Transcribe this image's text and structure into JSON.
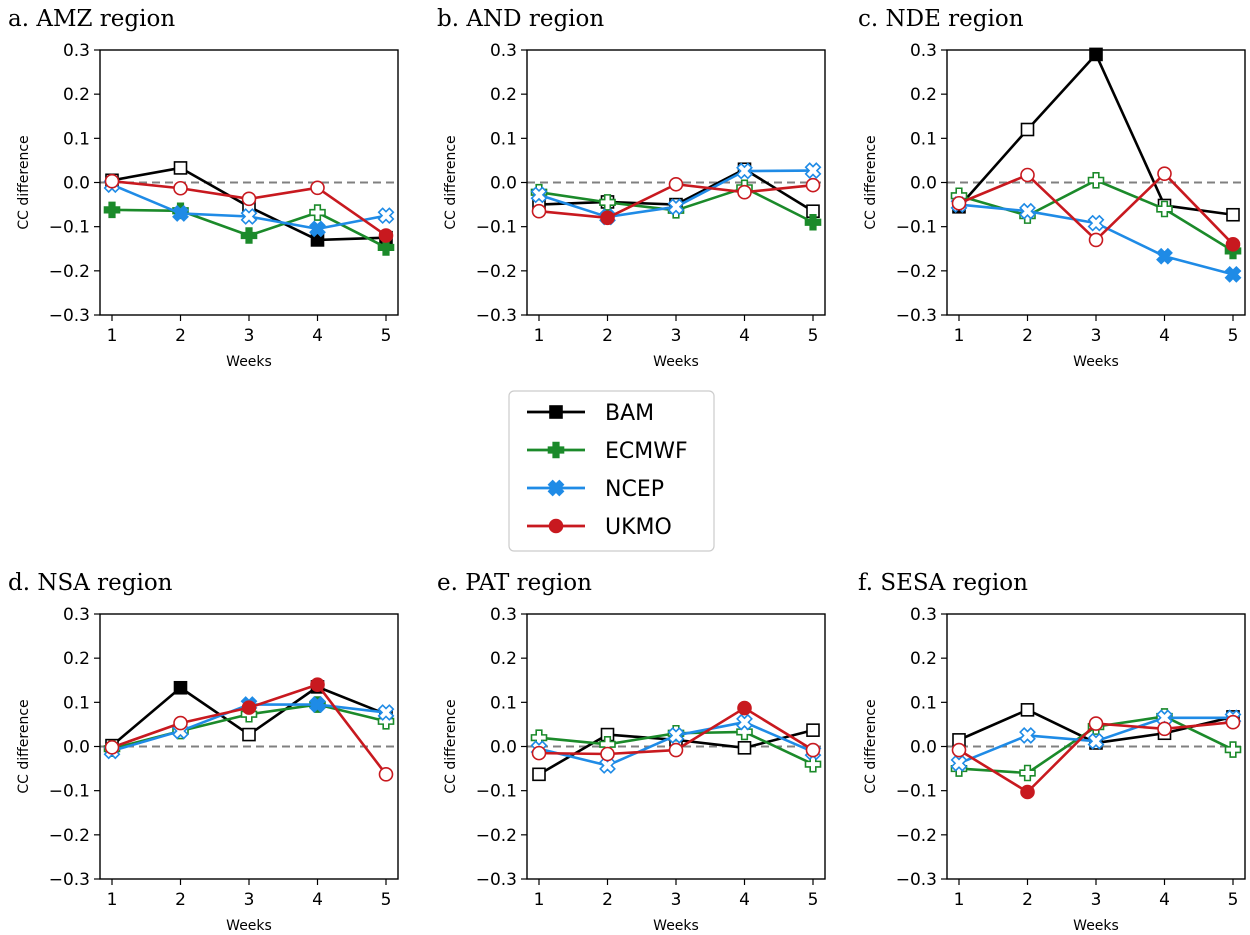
{
  "colors": {
    "BAM": "#000000",
    "ECMWF": "#1b8a2a",
    "NCEP": "#1f8be6",
    "UKMO": "#c8191f",
    "zero_line": "#808080"
  },
  "markers": {
    "BAM": "square",
    "ECMWF": "plus",
    "NCEP": "x",
    "UKMO": "circle"
  },
  "legend": {
    "entries": [
      "BAM",
      "ECMWF",
      "NCEP",
      "UKMO"
    ],
    "placement": "center"
  },
  "chart_data": [
    {
      "type": "line",
      "title": "a. AMZ region",
      "xlabel": "Weeks",
      "ylabel": "CC difference",
      "x": [
        1,
        2,
        3,
        4,
        5
      ],
      "xticks": [
        "1",
        "2",
        "3",
        "4",
        "5"
      ],
      "ylim": [
        -0.3,
        0.3
      ],
      "yticks": [
        "0.3",
        "0.2",
        "0.1",
        "0.0",
        "−0.1",
        "−0.2",
        "−0.3"
      ],
      "zero_line": true,
      "series": [
        {
          "name": "BAM",
          "values": [
            0.005,
            0.033,
            -0.055,
            -0.13,
            -0.125
          ],
          "filled": [
            false,
            false,
            false,
            true,
            true
          ]
        },
        {
          "name": "ECMWF",
          "values": [
            -0.062,
            -0.064,
            -0.12,
            -0.068,
            -0.147
          ],
          "filled": [
            true,
            true,
            true,
            false,
            true
          ]
        },
        {
          "name": "NCEP",
          "values": [
            -0.005,
            -0.07,
            -0.077,
            -0.105,
            -0.075
          ],
          "filled": [
            false,
            true,
            false,
            true,
            false
          ]
        },
        {
          "name": "UKMO",
          "values": [
            0.003,
            -0.013,
            -0.037,
            -0.012,
            -0.12
          ],
          "filled": [
            false,
            false,
            false,
            false,
            true
          ]
        }
      ]
    },
    {
      "type": "line",
      "title": "b. AND region",
      "xlabel": "Weeks",
      "ylabel": "CC difference",
      "x": [
        1,
        2,
        3,
        4,
        5
      ],
      "xticks": [
        "1",
        "2",
        "3",
        "4",
        "5"
      ],
      "ylim": [
        -0.3,
        0.3
      ],
      "yticks": [
        "0.3",
        "0.2",
        "0.1",
        "0.0",
        "−0.1",
        "−0.2",
        "−0.3"
      ],
      "zero_line": true,
      "series": [
        {
          "name": "BAM",
          "values": [
            -0.05,
            -0.044,
            -0.05,
            0.03,
            -0.065
          ],
          "filled": [
            false,
            false,
            false,
            false,
            false
          ]
        },
        {
          "name": "ECMWF",
          "values": [
            -0.022,
            -0.045,
            -0.063,
            -0.012,
            -0.09
          ],
          "filled": [
            false,
            false,
            false,
            false,
            true
          ]
        },
        {
          "name": "NCEP",
          "values": [
            -0.028,
            -0.078,
            -0.055,
            0.026,
            0.027
          ],
          "filled": [
            false,
            true,
            false,
            false,
            false
          ]
        },
        {
          "name": "UKMO",
          "values": [
            -0.065,
            -0.08,
            -0.004,
            -0.022,
            -0.006
          ],
          "filled": [
            false,
            true,
            false,
            false,
            false
          ]
        }
      ]
    },
    {
      "type": "line",
      "title": "c. NDE region",
      "xlabel": "Weeks",
      "ylabel": "CC difference",
      "x": [
        1,
        2,
        3,
        4,
        5
      ],
      "xticks": [
        "1",
        "2",
        "3",
        "4",
        "5"
      ],
      "ylim": [
        -0.3,
        0.3
      ],
      "yticks": [
        "0.3",
        "0.2",
        "0.1",
        "0.0",
        "−0.1",
        "−0.2",
        "−0.3"
      ],
      "zero_line": true,
      "series": [
        {
          "name": "BAM",
          "values": [
            -0.055,
            0.12,
            0.29,
            -0.052,
            -0.073
          ],
          "filled": [
            true,
            false,
            true,
            false,
            false
          ]
        },
        {
          "name": "ECMWF",
          "values": [
            -0.03,
            -0.075,
            0.005,
            -0.06,
            -0.155
          ],
          "filled": [
            false,
            false,
            false,
            false,
            true
          ]
        },
        {
          "name": "NCEP",
          "values": [
            -0.05,
            -0.065,
            -0.092,
            -0.167,
            -0.208
          ],
          "filled": [
            false,
            false,
            false,
            true,
            true
          ]
        },
        {
          "name": "UKMO",
          "values": [
            -0.047,
            0.017,
            -0.13,
            0.02,
            -0.14
          ],
          "filled": [
            false,
            false,
            false,
            false,
            true
          ]
        }
      ]
    },
    {
      "type": "line",
      "title": "d. NSA region",
      "xlabel": "Weeks",
      "ylabel": "CC difference",
      "x": [
        1,
        2,
        3,
        4,
        5
      ],
      "xticks": [
        "1",
        "2",
        "3",
        "4",
        "5"
      ],
      "ylim": [
        -0.3,
        0.3
      ],
      "yticks": [
        "0.3",
        "0.2",
        "0.1",
        "0.0",
        "−0.1",
        "−0.2",
        "−0.3"
      ],
      "zero_line": true,
      "series": [
        {
          "name": "BAM",
          "values": [
            0.002,
            0.133,
            0.027,
            0.135,
            0.073
          ],
          "filled": [
            false,
            true,
            false,
            true,
            false
          ]
        },
        {
          "name": "ECMWF",
          "values": [
            -0.005,
            0.035,
            0.073,
            0.095,
            0.057
          ],
          "filled": [
            false,
            false,
            false,
            true,
            false
          ]
        },
        {
          "name": "NCEP",
          "values": [
            -0.01,
            0.035,
            0.095,
            0.095,
            0.077
          ],
          "filled": [
            false,
            false,
            true,
            true,
            false
          ]
        },
        {
          "name": "UKMO",
          "values": [
            -0.002,
            0.053,
            0.088,
            0.14,
            -0.063
          ],
          "filled": [
            false,
            false,
            true,
            true,
            false
          ]
        }
      ]
    },
    {
      "type": "line",
      "title": "e. PAT region",
      "xlabel": "Weeks",
      "ylabel": "CC difference",
      "x": [
        1,
        2,
        3,
        4,
        5
      ],
      "xticks": [
        "1",
        "2",
        "3",
        "4",
        "5"
      ],
      "ylim": [
        -0.3,
        0.3
      ],
      "yticks": [
        "0.3",
        "0.2",
        "0.1",
        "0.0",
        "−0.1",
        "−0.2",
        "−0.3"
      ],
      "zero_line": true,
      "series": [
        {
          "name": "BAM",
          "values": [
            -0.063,
            0.027,
            0.015,
            -0.003,
            0.037
          ],
          "filled": [
            false,
            false,
            false,
            false,
            false
          ]
        },
        {
          "name": "ECMWF",
          "values": [
            0.02,
            0.005,
            0.03,
            0.033,
            -0.04
          ],
          "filled": [
            false,
            false,
            false,
            false,
            false
          ]
        },
        {
          "name": "NCEP",
          "values": [
            -0.005,
            -0.043,
            0.025,
            0.055,
            -0.012
          ],
          "filled": [
            false,
            false,
            false,
            false,
            false
          ]
        },
        {
          "name": "UKMO",
          "values": [
            -0.015,
            -0.017,
            -0.008,
            0.087,
            -0.008
          ],
          "filled": [
            false,
            false,
            false,
            true,
            false
          ]
        }
      ]
    },
    {
      "type": "line",
      "title": "f. SESA region",
      "xlabel": "Weeks",
      "ylabel": "CC difference",
      "x": [
        1,
        2,
        3,
        4,
        5
      ],
      "xticks": [
        "1",
        "2",
        "3",
        "4",
        "5"
      ],
      "ylim": [
        -0.3,
        0.3
      ],
      "yticks": [
        "0.3",
        "0.2",
        "0.1",
        "0.0",
        "−0.1",
        "−0.2",
        "−0.3"
      ],
      "zero_line": true,
      "series": [
        {
          "name": "BAM",
          "values": [
            0.015,
            0.083,
            0.008,
            0.03,
            0.067
          ],
          "filled": [
            false,
            false,
            false,
            false,
            false
          ]
        },
        {
          "name": "ECMWF",
          "values": [
            -0.05,
            -0.06,
            0.045,
            0.068,
            -0.007
          ],
          "filled": [
            false,
            false,
            false,
            false,
            false
          ]
        },
        {
          "name": "NCEP",
          "values": [
            -0.038,
            0.025,
            0.012,
            0.065,
            0.065
          ],
          "filled": [
            false,
            false,
            false,
            false,
            false
          ]
        },
        {
          "name": "UKMO",
          "values": [
            -0.008,
            -0.103,
            0.052,
            0.04,
            0.055
          ],
          "filled": [
            false,
            true,
            false,
            false,
            false
          ]
        }
      ]
    }
  ]
}
